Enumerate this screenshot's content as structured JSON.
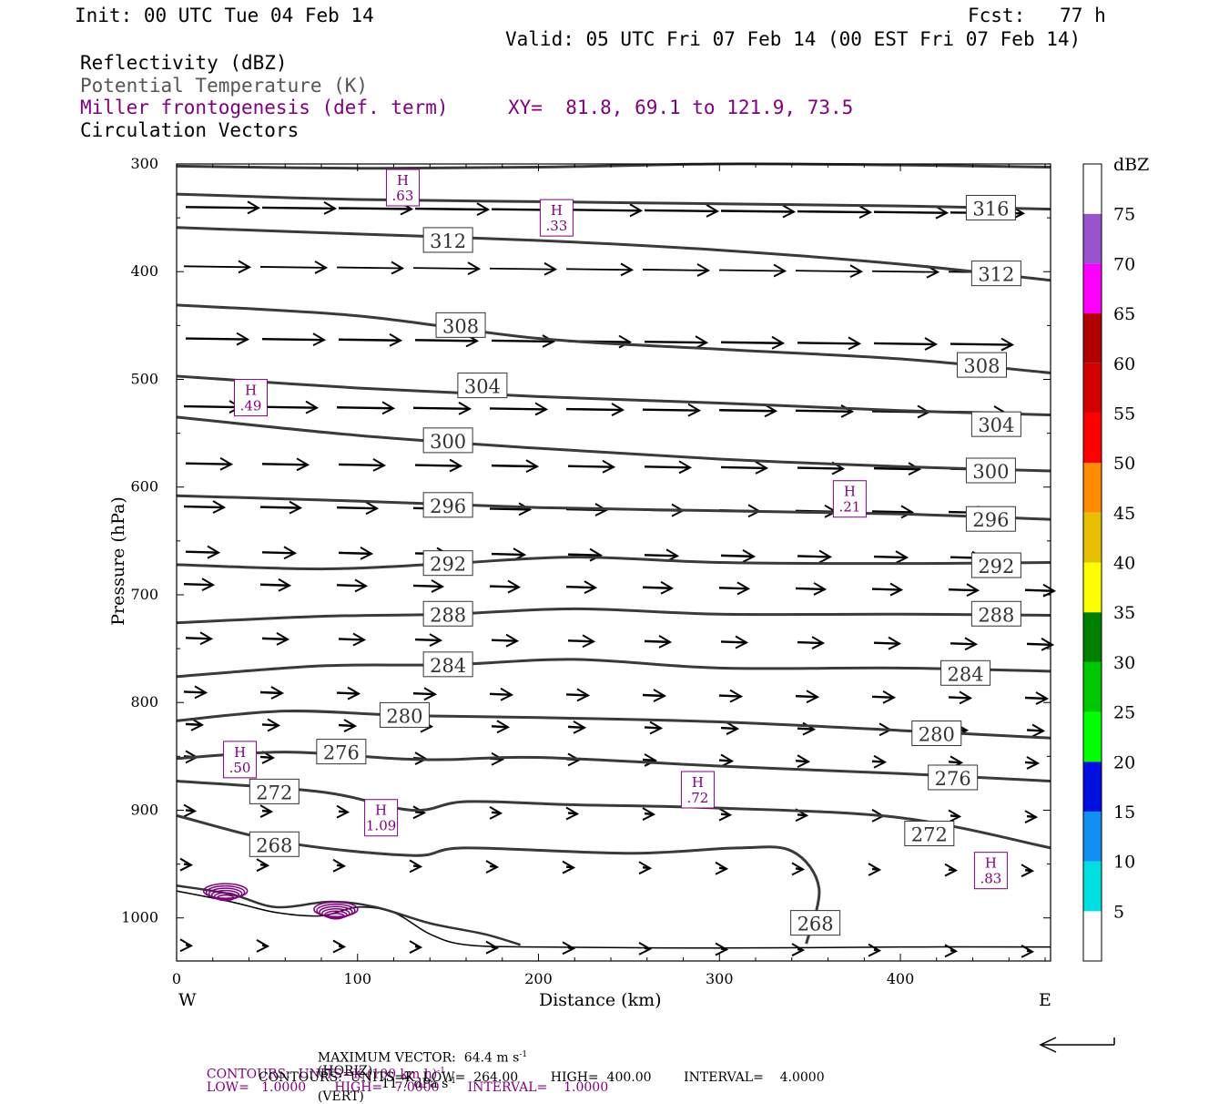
{
  "header": {
    "init": "Init: 00 UTC Tue 04 Feb 14",
    "fcst": "Fcst:   77 h",
    "valid": "Valid: 05 UTC Fri 07 Feb 14 (00 EST Fri 07 Feb 14)",
    "field1": "Reflectivity (dBZ)",
    "field2": "Potential Temperature (K)",
    "field3": "Miller frontogenesis (def. term)",
    "xy": "XY=  81.8, 69.1 to 121.9, 73.5",
    "field4": "Circulation Vectors"
  },
  "colors": {
    "theta": "#3a3a3a",
    "fronto": "#800080",
    "vectors": "#000000"
  },
  "chart_data": {
    "type": "line",
    "title": "",
    "xlabel": "Distance (km)",
    "ylabel": "Pressure (hPa)",
    "xlim": [
      0,
      483
    ],
    "ylim": [
      1040,
      300
    ],
    "xticks": [
      0,
      100,
      200,
      300,
      400
    ],
    "yticks": [
      300,
      400,
      500,
      600,
      700,
      800,
      900,
      1000
    ],
    "x_end_labels": {
      "left": "W",
      "right": "E"
    },
    "theta_contours": [
      {
        "level": "316",
        "points": [
          [
            0,
            302
          ],
          [
            100,
            304
          ],
          [
            200,
            303
          ],
          [
            300,
            300
          ],
          [
            400,
            301
          ],
          [
            483,
            303
          ]
        ]
      },
      {
        "level": "316",
        "label_at": [
          450,
          341
        ],
        "points": [
          [
            0,
            328
          ],
          [
            100,
            333
          ],
          [
            200,
            335
          ],
          [
            300,
            337
          ],
          [
            400,
            339
          ],
          [
            483,
            342
          ]
        ]
      },
      {
        "level": "312",
        "label_at": [
          150,
          371
        ],
        "points": [
          [
            0,
            359
          ],
          [
            100,
            365
          ],
          [
            200,
            371
          ],
          [
            300,
            380
          ],
          [
            400,
            393
          ],
          [
            483,
            408
          ]
        ]
      },
      {
        "level": "312",
        "label_at": [
          453,
          402
        ],
        "hidden_label": false,
        "points": [
          [
            0,
            359
          ],
          [
            0,
            359
          ]
        ]
      },
      {
        "level": "308",
        "label_at": [
          157,
          450
        ],
        "points": [
          [
            0,
            431
          ],
          [
            100,
            441
          ],
          [
            200,
            462
          ],
          [
            300,
            472
          ],
          [
            400,
            481
          ],
          [
            483,
            494
          ]
        ]
      },
      {
        "level": "308",
        "label_at": [
          445,
          487
        ],
        "points": [
          [
            0,
            0
          ],
          [
            0,
            0
          ]
        ]
      },
      {
        "level": "304",
        "label_at": [
          169,
          506
        ],
        "points": [
          [
            0,
            497
          ],
          [
            100,
            508
          ],
          [
            200,
            516
          ],
          [
            300,
            522
          ],
          [
            400,
            529
          ],
          [
            483,
            533
          ]
        ]
      },
      {
        "level": "304",
        "label_at": [
          453,
          542
        ],
        "points": [
          [
            0,
            0
          ],
          [
            0,
            0
          ]
        ]
      },
      {
        "level": "300",
        "label_at": [
          150,
          557
        ],
        "points": [
          [
            0,
            535
          ],
          [
            100,
            552
          ],
          [
            200,
            564
          ],
          [
            300,
            574
          ],
          [
            400,
            581
          ],
          [
            483,
            585
          ]
        ]
      },
      {
        "level": "300",
        "label_at": [
          450,
          585
        ],
        "points": [
          [
            0,
            0
          ],
          [
            0,
            0
          ]
        ]
      },
      {
        "level": "296",
        "label_at": [
          150,
          617
        ],
        "points": [
          [
            0,
            608
          ],
          [
            100,
            613
          ],
          [
            200,
            619
          ],
          [
            300,
            622
          ],
          [
            400,
            625
          ],
          [
            483,
            630
          ]
        ]
      },
      {
        "level": "296",
        "label_at": [
          450,
          630
        ],
        "points": [
          [
            0,
            0
          ],
          [
            0,
            0
          ]
        ]
      },
      {
        "level": "292",
        "label_at": [
          150,
          671
        ],
        "points": [
          [
            0,
            672
          ],
          [
            80,
            676
          ],
          [
            150,
            671
          ],
          [
            220,
            665
          ],
          [
            300,
            670
          ],
          [
            400,
            671
          ],
          [
            483,
            670
          ]
        ]
      },
      {
        "level": "292",
        "label_at": [
          453,
          673
        ],
        "points": [
          [
            0,
            0
          ],
          [
            0,
            0
          ]
        ]
      },
      {
        "level": "288",
        "label_at": [
          150,
          718
        ],
        "points": [
          [
            0,
            726
          ],
          [
            80,
            720
          ],
          [
            150,
            718
          ],
          [
            220,
            713
          ],
          [
            300,
            718
          ],
          [
            400,
            718
          ],
          [
            483,
            719
          ]
        ]
      },
      {
        "level": "288",
        "label_at": [
          453,
          718
        ],
        "points": [
          [
            0,
            0
          ],
          [
            0,
            0
          ]
        ]
      },
      {
        "level": "284",
        "label_at": [
          150,
          765
        ],
        "points": [
          [
            0,
            776
          ],
          [
            80,
            766
          ],
          [
            150,
            765
          ],
          [
            220,
            760
          ],
          [
            300,
            768
          ],
          [
            400,
            768
          ],
          [
            483,
            771
          ]
        ]
      },
      {
        "level": "284",
        "label_at": [
          436,
          773
        ],
        "points": [
          [
            0,
            0
          ],
          [
            0,
            0
          ]
        ]
      },
      {
        "level": "280",
        "label_at": [
          126,
          812
        ],
        "points": [
          [
            0,
            817
          ],
          [
            60,
            808
          ],
          [
            126,
            812
          ],
          [
            200,
            814
          ],
          [
            300,
            818
          ],
          [
            400,
            826
          ],
          [
            483,
            833
          ]
        ]
      },
      {
        "level": "280",
        "label_at": [
          420,
          829
        ],
        "points": [
          [
            0,
            0
          ],
          [
            0,
            0
          ]
        ]
      },
      {
        "level": "276",
        "label_at": [
          91,
          846
        ],
        "points": [
          [
            0,
            852
          ],
          [
            60,
            846
          ],
          [
            120,
            852
          ],
          [
            150,
            853
          ],
          [
            200,
            851
          ],
          [
            300,
            859
          ],
          [
            400,
            866
          ],
          [
            483,
            873
          ]
        ]
      },
      {
        "level": "276",
        "label_at": [
          429,
          870
        ],
        "points": [
          [
            0,
            0
          ],
          [
            0,
            0
          ]
        ]
      },
      {
        "level": "272",
        "label_at": [
          54,
          883
        ],
        "points": [
          [
            0,
            873
          ],
          [
            80,
            883
          ],
          [
            130,
            900
          ],
          [
            160,
            892
          ],
          [
            220,
            895
          ],
          [
            300,
            898
          ],
          [
            400,
            907
          ],
          [
            483,
            935
          ]
        ]
      },
      {
        "level": "272",
        "label_at": [
          416,
          922
        ],
        "points": [
          [
            0,
            0
          ],
          [
            0,
            0
          ]
        ]
      },
      {
        "level": "268",
        "label_at": [
          54,
          932
        ],
        "points": [
          [
            0,
            905
          ],
          [
            60,
            930
          ],
          [
            130,
            942
          ],
          [
            160,
            935
          ],
          [
            250,
            940
          ],
          [
            310,
            935
          ],
          [
            340,
            938
          ],
          [
            355,
            972
          ],
          [
            348,
            1024
          ]
        ]
      },
      {
        "level": "268",
        "label_at": [
          353,
          1005
        ],
        "points": [
          [
            0,
            0
          ],
          [
            0,
            0
          ]
        ]
      }
    ],
    "frontogenesis_maxima": [
      {
        "label": "H",
        "value": ".63",
        "at": [
          125,
          322
        ]
      },
      {
        "label": "H",
        "value": ".33",
        "at": [
          210,
          350
        ]
      },
      {
        "label": "H",
        "value": ".49",
        "at": [
          41,
          517
        ]
      },
      {
        "label": "H",
        "value": ".21",
        "at": [
          372,
          611
        ]
      },
      {
        "label": "H",
        "value": ".50",
        "at": [
          35,
          853
        ]
      },
      {
        "label": "H",
        "value": ".72",
        "at": [
          288,
          881
        ]
      },
      {
        "label": "H",
        "value": "1.09",
        "at": [
          113,
          907
        ]
      },
      {
        "label": "H",
        "value": ".83",
        "at": [
          450,
          956
        ]
      }
    ],
    "reflectivity_colorbar": {
      "unit": "dBZ",
      "levels": [
        "5",
        "10",
        "15",
        "20",
        "25",
        "30",
        "35",
        "40",
        "45",
        "50",
        "55",
        "60",
        "65",
        "70",
        "75"
      ],
      "colors": [
        "#ffffff",
        "#00e0e0",
        "#1090f0",
        "#0010e0",
        "#00ff00",
        "#00c800",
        "#008000",
        "#ffff00",
        "#e6c000",
        "#ff8c00",
        "#ff0000",
        "#d40000",
        "#b00000",
        "#ff00ff",
        "#9955cc",
        "#ffffff"
      ]
    }
  },
  "footer": {
    "max_vector": "MAXIMUM VECTOR:  64.4 m s",
    "max_vector_h": "(HORIZ)",
    "max_vector_v": "11.7 dPa s",
    "max_vector_v2": "(VERT)",
    "fronto_contours": "CONTOURS:  UNITS=K (100 km h)",
    "fronto_contours2": "LOW=   1.0000       HIGH=   7.0000       INTERVAL=    1.0000",
    "theta_contours": "CONTOURS:  UNITS=K  LOW=  264.00        HIGH=  400.00        INTERVAL=    4.0000",
    "sup": "-1"
  }
}
